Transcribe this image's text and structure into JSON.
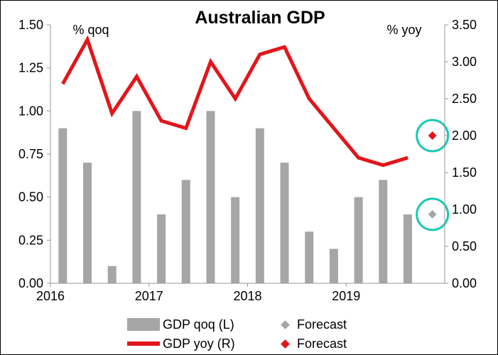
{
  "chart_data": {
    "type": "bar",
    "title": "Australian GDP",
    "left_axis_label": "% qoq",
    "right_axis_label": "% yoy",
    "left_ylim": [
      0,
      1.5
    ],
    "left_ticks": [
      "0.00",
      "0.25",
      "0.50",
      "0.75",
      "1.00",
      "1.25",
      "1.50"
    ],
    "right_ylim": [
      0,
      3.5
    ],
    "right_ticks": [
      "0.00",
      "0.50",
      "1.00",
      "1.50",
      "2.00",
      "2.50",
      "3.00",
      "3.50"
    ],
    "x_ticks": [
      "2016",
      "2017",
      "2018",
      "2019"
    ],
    "quarters": [
      "2016Q1",
      "2016Q2",
      "2016Q3",
      "2016Q4",
      "2017Q1",
      "2017Q2",
      "2017Q3",
      "2017Q4",
      "2018Q1",
      "2018Q2",
      "2018Q3",
      "2018Q4",
      "2019Q1",
      "2019Q2",
      "2019Q3",
      "2019Q4"
    ],
    "grid": false,
    "legend_position": "bottom",
    "series": [
      {
        "name": "GDP qoq (L)",
        "kind": "bar",
        "axis": "left",
        "color": "#a6a6a6",
        "values": [
          0.9,
          0.7,
          0.1,
          1.0,
          0.4,
          0.6,
          1.0,
          0.5,
          0.9,
          0.7,
          0.3,
          0.2,
          0.5,
          0.6,
          0.4
        ]
      },
      {
        "name": "GDP yoy (R)",
        "kind": "line",
        "axis": "right",
        "color": "#e3151a",
        "values": [
          2.7,
          3.3,
          2.3,
          2.8,
          2.2,
          2.1,
          3.0,
          2.5,
          3.1,
          3.2,
          2.5,
          2.1,
          1.7,
          1.6,
          1.7
        ]
      },
      {
        "name": "Forecast",
        "kind": "marker",
        "axis": "left",
        "color": "#a6a6a6",
        "quarter": "2019Q4",
        "value": 0.4
      },
      {
        "name": "Forecast",
        "kind": "marker",
        "axis": "right",
        "color": "#e3151a",
        "quarter": "2019Q4",
        "value": 2.0
      }
    ],
    "highlight_color": "#1ac9b4"
  }
}
